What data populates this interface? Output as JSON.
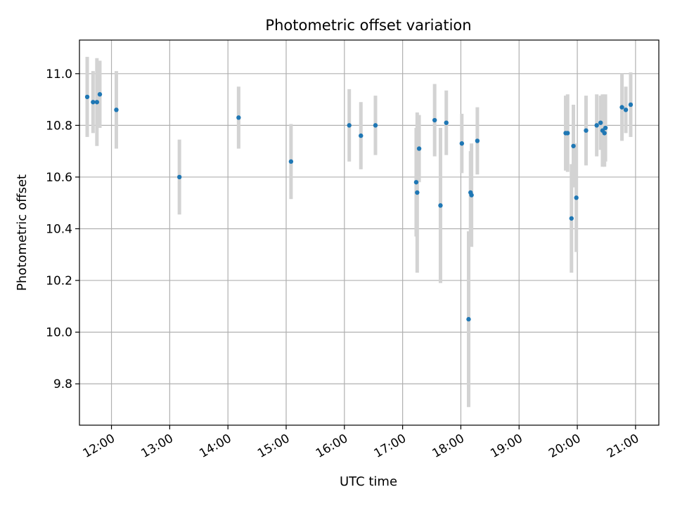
{
  "chart_data": {
    "type": "scatter",
    "title": "Photometric offset variation",
    "xlabel": "UTC time",
    "ylabel": "Photometric offset",
    "xlim": [
      "11:27",
      "21:24"
    ],
    "ylim": [
      9.64,
      11.13
    ],
    "grid": true,
    "x_ticks": [
      "12:00",
      "13:00",
      "14:00",
      "15:00",
      "16:00",
      "17:00",
      "18:00",
      "19:00",
      "20:00",
      "21:00"
    ],
    "y_ticks": [
      "9.8",
      "10.0",
      "10.2",
      "10.4",
      "10.6",
      "10.8",
      "11.0"
    ],
    "colors": {
      "point": "#1f77b4",
      "errorbar": "#d3d3d3",
      "grid": "#b0b0b0"
    },
    "series": [
      {
        "points": [
          {
            "x": "11:35",
            "y": 10.91,
            "err": 0.155
          },
          {
            "x": "11:41",
            "y": 10.89,
            "err": 0.12
          },
          {
            "x": "11:45",
            "y": 10.89,
            "err": 0.17
          },
          {
            "x": "11:48",
            "y": 10.92,
            "err": 0.13
          },
          {
            "x": "12:05",
            "y": 10.86,
            "err": 0.15
          },
          {
            "x": "13:10",
            "y": 10.6,
            "err": 0.145
          },
          {
            "x": "14:11",
            "y": 10.83,
            "err": 0.12
          },
          {
            "x": "15:05",
            "y": 10.66,
            "err": 0.145
          },
          {
            "x": "16:05",
            "y": 10.8,
            "err": 0.14
          },
          {
            "x": "16:17",
            "y": 10.76,
            "err": 0.13
          },
          {
            "x": "16:32",
            "y": 10.8,
            "err": 0.115
          },
          {
            "x": "17:14",
            "y": 10.58,
            "err": 0.21
          },
          {
            "x": "17:15",
            "y": 10.54,
            "err": 0.31
          },
          {
            "x": "17:17",
            "y": 10.71,
            "err": 0.13
          },
          {
            "x": "17:33",
            "y": 10.82,
            "err": 0.14
          },
          {
            "x": "17:39",
            "y": 10.49,
            "err": 0.3
          },
          {
            "x": "17:45",
            "y": 10.81,
            "err": 0.125
          },
          {
            "x": "18:01",
            "y": 10.73,
            "err": 0.115
          },
          {
            "x": "18:08",
            "y": 10.05,
            "err": 0.34
          },
          {
            "x": "18:10",
            "y": 10.54,
            "err": 0.16
          },
          {
            "x": "18:11",
            "y": 10.53,
            "err": 0.2
          },
          {
            "x": "18:17",
            "y": 10.74,
            "err": 0.13
          },
          {
            "x": "19:48",
            "y": 10.77,
            "err": 0.145
          },
          {
            "x": "19:50",
            "y": 10.77,
            "err": 0.15
          },
          {
            "x": "19:54",
            "y": 10.44,
            "err": 0.21
          },
          {
            "x": "19:56",
            "y": 10.72,
            "err": 0.16
          },
          {
            "x": "19:59",
            "y": 10.52,
            "err": 0.21
          },
          {
            "x": "20:09",
            "y": 10.78,
            "err": 0.135
          },
          {
            "x": "20:20",
            "y": 10.8,
            "err": 0.12
          },
          {
            "x": "20:24",
            "y": 10.81,
            "err": 0.105
          },
          {
            "x": "20:26",
            "y": 10.78,
            "err": 0.14
          },
          {
            "x": "20:28",
            "y": 10.77,
            "err": 0.13
          },
          {
            "x": "20:29",
            "y": 10.79,
            "err": 0.13
          },
          {
            "x": "20:46",
            "y": 10.87,
            "err": 0.13
          },
          {
            "x": "20:50",
            "y": 10.86,
            "err": 0.09
          },
          {
            "x": "20:55",
            "y": 10.88,
            "err": 0.125
          }
        ]
      }
    ]
  }
}
